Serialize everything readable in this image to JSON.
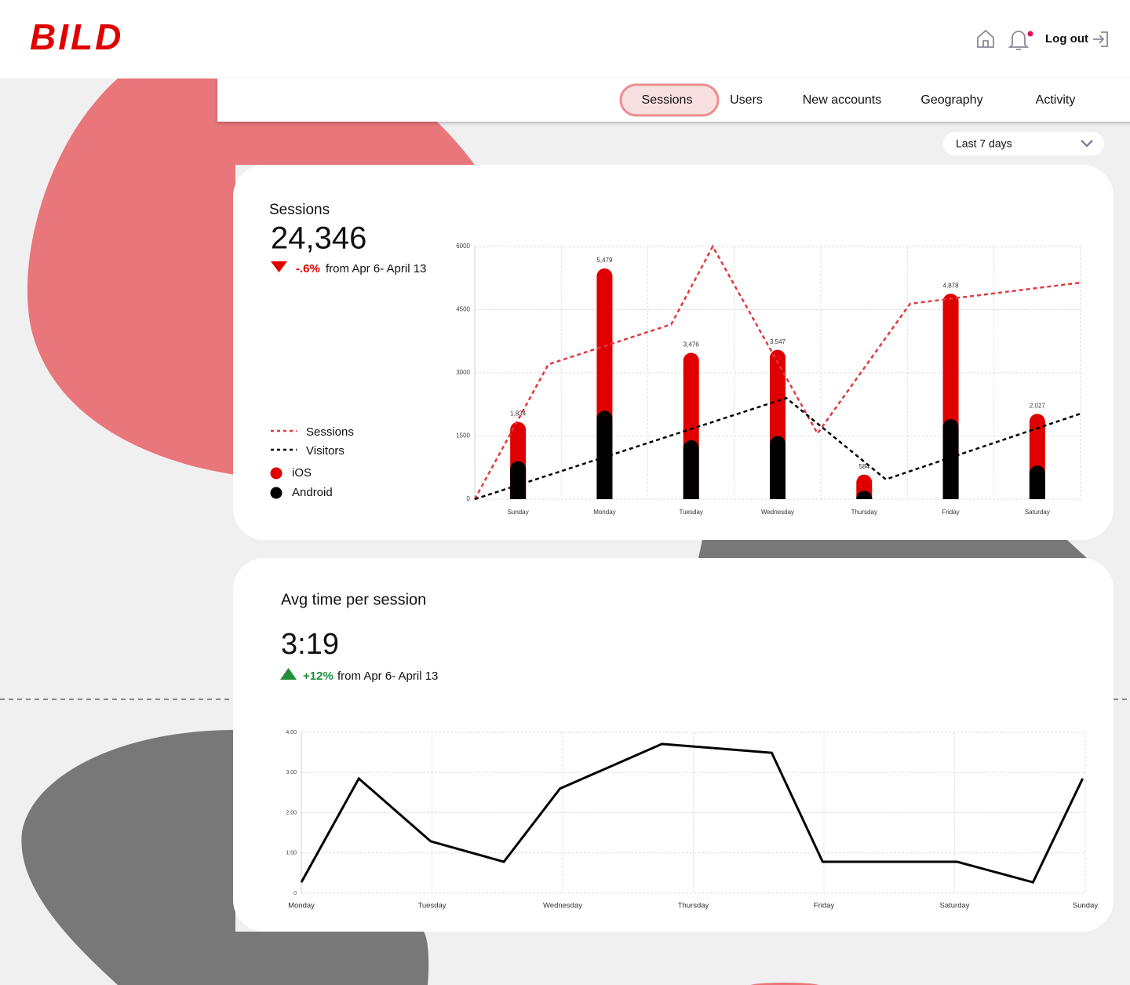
{
  "header": {
    "logo": "BILD",
    "logout": "Log out"
  },
  "nav": {
    "tabs": [
      "Sessions",
      "Users",
      "New accounts",
      "Geography",
      "Activity"
    ]
  },
  "filter": {
    "label": "Last 7 days"
  },
  "sessions_card": {
    "title": "Sessions",
    "value": "24,346",
    "change": "-.6%",
    "change_text": "from Apr 6- April 13",
    "chart": {
      "type": "bar",
      "categories": [
        "Sunday",
        "Monday",
        "Tuesday",
        "Wednesday",
        "Thursday",
        "Friday",
        "Saturday"
      ],
      "xlim": [
        -0.5,
        6.5
      ],
      "ylim": [
        0,
        6000
      ],
      "yticks": [
        0,
        1500,
        3000,
        4500,
        6000
      ],
      "grid": true,
      "bar_labels": [
        "1,834",
        "5,479",
        "3,476",
        "3.547",
        "584",
        "4,878",
        "2.027"
      ],
      "series": [
        {
          "name": "Sessions",
          "type": "line",
          "dashed": true,
          "color": "#e0393e",
          "x": [
            -0.5,
            0.35,
            1.77,
            2.25,
            3.46,
            4.53,
            6.5
          ],
          "values": [
            0,
            3200,
            4150,
            6000,
            1560,
            4640,
            5140
          ]
        },
        {
          "name": "Visitors",
          "type": "line",
          "dashed": true,
          "color": "#000000",
          "x": [
            -0.5,
            3.1,
            4.25,
            6.5
          ],
          "values": [
            0,
            2400,
            470,
            2030
          ]
        },
        {
          "name": "iOS",
          "type": "bar",
          "color": "#e00000",
          "values": [
            934,
            3379,
            2076,
            2047,
            384,
            2978,
            1227
          ]
        },
        {
          "name": "Android",
          "type": "bar",
          "color": "#000000",
          "values": [
            900,
            2100,
            1400,
            1500,
            200,
            1900,
            800
          ]
        }
      ]
    }
  },
  "time_card": {
    "title": "Avg time per session",
    "value": "3:19",
    "change": "+12%",
    "change_text": "from Apr 6- April 13",
    "chart": {
      "type": "line",
      "categories": [
        "Monday",
        "Tuesday",
        "Wednesday",
        "Thursday",
        "Friday",
        "Saturday",
        "Sunday"
      ],
      "xlim": [
        0,
        6
      ],
      "ylim": [
        0,
        4
      ],
      "yticks": [
        0,
        {
          "value": 1,
          "label": "1:00"
        },
        {
          "value": 2,
          "label": "2:00"
        },
        {
          "value": 3,
          "label": "3:00"
        },
        {
          "value": 4,
          "label": "4:00"
        }
      ],
      "grid": true,
      "series": [
        {
          "color": "#000000",
          "x": [
            0,
            0.44,
            0.99,
            1.55,
            1.98,
            2.76,
            3.6,
            3.99,
            5.02,
            5.6,
            5.98
          ],
          "values": [
            0.27,
            2.85,
            1.29,
            0.78,
            2.6,
            3.71,
            3.49,
            0.78,
            0.78,
            0.27,
            2.85
          ]
        }
      ]
    }
  }
}
